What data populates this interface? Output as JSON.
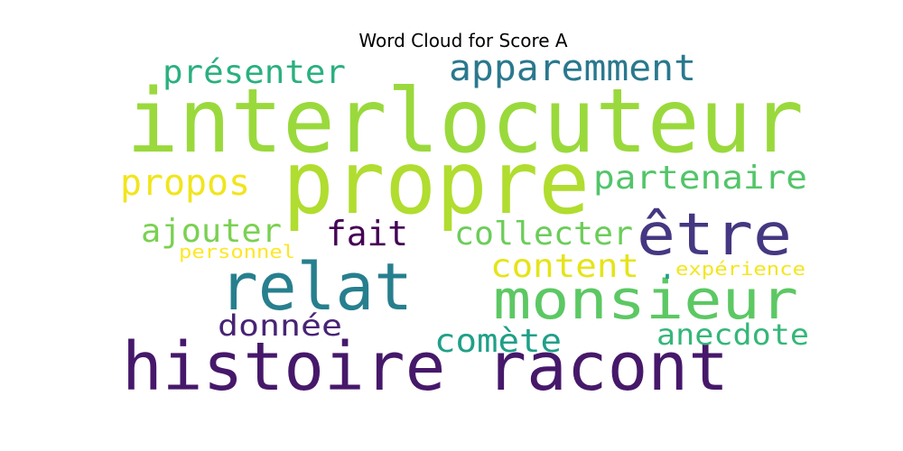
{
  "chart_data": {
    "type": "wordcloud",
    "title": "Word Cloud for Score A",
    "words": [
      {
        "text": "interlocuteur",
        "color": "#9ad93c"
      },
      {
        "text": "propre",
        "color": "#b0dd2f"
      },
      {
        "text": "histoire racont",
        "color": "#46186a"
      },
      {
        "text": "monsieur",
        "color": "#5cc863"
      },
      {
        "text": "relat",
        "color": "#277f8e"
      },
      {
        "text": "être",
        "color": "#453781"
      },
      {
        "text": "apparemment",
        "color": "#2a788e"
      },
      {
        "text": "présenter",
        "color": "#2ab07f"
      },
      {
        "text": "partenaire",
        "color": "#52c569"
      },
      {
        "text": "propos",
        "color": "#f1e51d"
      },
      {
        "text": "collecter",
        "color": "#6ccd5a"
      },
      {
        "text": "content",
        "color": "#e5e419"
      },
      {
        "text": "ajouter",
        "color": "#7ad151"
      },
      {
        "text": "fait",
        "color": "#440154"
      },
      {
        "text": "donnée",
        "color": "#482475"
      },
      {
        "text": "comète",
        "color": "#1fa088"
      },
      {
        "text": "anecdote",
        "color": "#35b779"
      },
      {
        "text": "personnel",
        "color": "#fde725"
      },
      {
        "text": "expérience",
        "color": "#f3e620"
      },
      {
        "text": ".",
        "color": "#1f9e89"
      }
    ]
  }
}
